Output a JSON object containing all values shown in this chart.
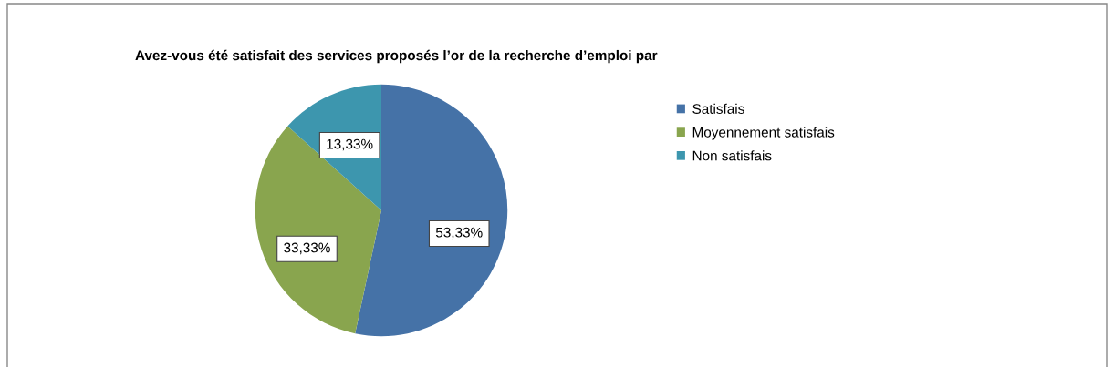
{
  "chart_data": {
    "type": "pie",
    "title": "Avez-vous été satisfait des services proposés l’or de la recherche d’emploi par",
    "categories": [
      "Satisfais",
      "Moyennement satisfais",
      "Non satisfais"
    ],
    "values": [
      53.33,
      33.33,
      13.33
    ],
    "colors": [
      "#4572a7",
      "#89a54e",
      "#3d96ae"
    ],
    "value_labels": [
      "53,33%",
      "33,33%",
      "13,33%"
    ],
    "legend": "right"
  }
}
